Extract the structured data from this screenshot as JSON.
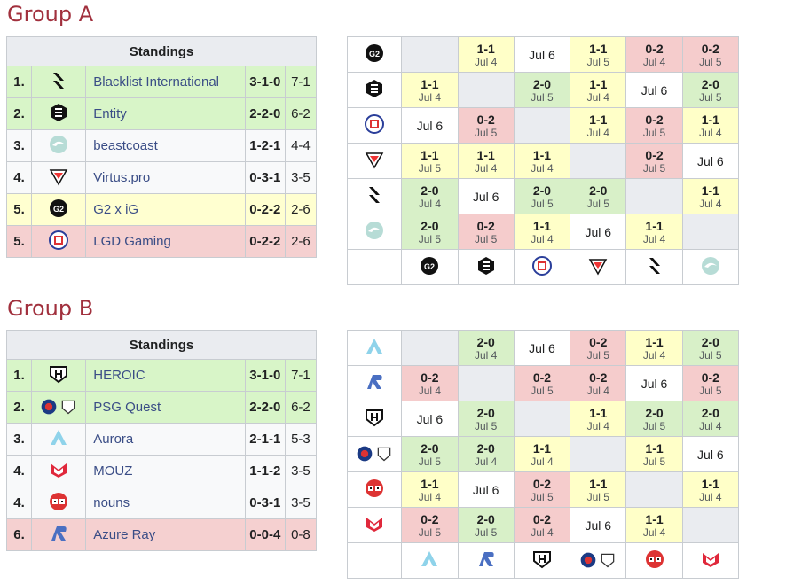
{
  "groupA": {
    "title": "Group A",
    "standings_header": "Standings",
    "rows": [
      {
        "rank": "1.",
        "logo": "blacklist-logo",
        "name": "Blacklist International",
        "record": "3-1-0",
        "games": "7-1",
        "tier": "up"
      },
      {
        "rank": "2.",
        "logo": "entity-logo",
        "name": "Entity",
        "record": "2-2-0",
        "games": "6-2",
        "tier": "up"
      },
      {
        "rank": "3.",
        "logo": "beastcoast-logo",
        "name": "beastcoast",
        "record": "1-2-1",
        "games": "4-4",
        "tier": "mid"
      },
      {
        "rank": "4.",
        "logo": "virtuspro-logo",
        "name": "Virtus.pro",
        "record": "0-3-1",
        "games": "3-5",
        "tier": "mid"
      },
      {
        "rank": "5.",
        "logo": "g2ig-logo",
        "name": "G2 x iG",
        "record": "0-2-2",
        "games": "2-6",
        "tier": "upmid"
      },
      {
        "rank": "5.",
        "logo": "lgd-logo",
        "name": "LGD Gaming",
        "record": "0-2-2",
        "games": "2-6",
        "tier": "down"
      }
    ],
    "cross_row_logos": [
      "g2ig-logo",
      "entity-logo",
      "lgd-logo",
      "virtuspro-logo",
      "blacklist-logo",
      "beastcoast-logo"
    ],
    "cross": [
      [
        {
          "t": "self"
        },
        {
          "t": "d",
          "s": "1-1",
          "d": "Jul 4"
        },
        {
          "t": "f",
          "d": "Jul 6"
        },
        {
          "t": "d",
          "s": "1-1",
          "d": "Jul 5"
        },
        {
          "t": "l",
          "s": "0-2",
          "d": "Jul 4"
        },
        {
          "t": "l",
          "s": "0-2",
          "d": "Jul 5"
        }
      ],
      [
        {
          "t": "d",
          "s": "1-1",
          "d": "Jul 4"
        },
        {
          "t": "self"
        },
        {
          "t": "w",
          "s": "2-0",
          "d": "Jul 5"
        },
        {
          "t": "d",
          "s": "1-1",
          "d": "Jul 4"
        },
        {
          "t": "f",
          "d": "Jul 6"
        },
        {
          "t": "w",
          "s": "2-0",
          "d": "Jul 5"
        }
      ],
      [
        {
          "t": "f",
          "d": "Jul 6"
        },
        {
          "t": "l",
          "s": "0-2",
          "d": "Jul 5"
        },
        {
          "t": "self"
        },
        {
          "t": "d",
          "s": "1-1",
          "d": "Jul 4"
        },
        {
          "t": "l",
          "s": "0-2",
          "d": "Jul 5"
        },
        {
          "t": "d",
          "s": "1-1",
          "d": "Jul 4"
        }
      ],
      [
        {
          "t": "d",
          "s": "1-1",
          "d": "Jul 5"
        },
        {
          "t": "d",
          "s": "1-1",
          "d": "Jul 4"
        },
        {
          "t": "d",
          "s": "1-1",
          "d": "Jul 4"
        },
        {
          "t": "self"
        },
        {
          "t": "l",
          "s": "0-2",
          "d": "Jul 5"
        },
        {
          "t": "f",
          "d": "Jul 6"
        }
      ],
      [
        {
          "t": "w",
          "s": "2-0",
          "d": "Jul 4"
        },
        {
          "t": "f",
          "d": "Jul 6"
        },
        {
          "t": "w",
          "s": "2-0",
          "d": "Jul 5"
        },
        {
          "t": "w",
          "s": "2-0",
          "d": "Jul 5"
        },
        {
          "t": "self"
        },
        {
          "t": "d",
          "s": "1-1",
          "d": "Jul 4"
        }
      ],
      [
        {
          "t": "w",
          "s": "2-0",
          "d": "Jul 5"
        },
        {
          "t": "l",
          "s": "0-2",
          "d": "Jul 5"
        },
        {
          "t": "d",
          "s": "1-1",
          "d": "Jul 4"
        },
        {
          "t": "f",
          "d": "Jul 6"
        },
        {
          "t": "d",
          "s": "1-1",
          "d": "Jul 4"
        },
        {
          "t": "self"
        }
      ]
    ]
  },
  "groupB": {
    "title": "Group B",
    "standings_header": "Standings",
    "rows": [
      {
        "rank": "1.",
        "logo": "heroic-logo",
        "name": "HEROIC",
        "record": "3-1-0",
        "games": "7-1",
        "tier": "up"
      },
      {
        "rank": "2.",
        "logo": "psg-quest-logo",
        "name": "PSG Quest",
        "record": "2-2-0",
        "games": "6-2",
        "tier": "up"
      },
      {
        "rank": "3.",
        "logo": "aurora-logo",
        "name": "Aurora",
        "record": "2-1-1",
        "games": "5-3",
        "tier": "mid"
      },
      {
        "rank": "4.",
        "logo": "mouz-logo",
        "name": "MOUZ",
        "record": "1-1-2",
        "games": "3-5",
        "tier": "mid"
      },
      {
        "rank": "4.",
        "logo": "nouns-logo",
        "name": "nouns",
        "record": "0-3-1",
        "games": "3-5",
        "tier": "mid"
      },
      {
        "rank": "6.",
        "logo": "azure-ray-logo",
        "name": "Azure Ray",
        "record": "0-0-4",
        "games": "0-8",
        "tier": "down"
      }
    ],
    "cross_row_logos": [
      "aurora-logo",
      "azure-ray-logo",
      "heroic-logo",
      "psg-quest-logo",
      "nouns-logo",
      "mouz-logo"
    ],
    "cross": [
      [
        {
          "t": "self"
        },
        {
          "t": "w",
          "s": "2-0",
          "d": "Jul 4"
        },
        {
          "t": "f",
          "d": "Jul 6"
        },
        {
          "t": "l",
          "s": "0-2",
          "d": "Jul 5"
        },
        {
          "t": "d",
          "s": "1-1",
          "d": "Jul 4"
        },
        {
          "t": "w",
          "s": "2-0",
          "d": "Jul 5"
        }
      ],
      [
        {
          "t": "l",
          "s": "0-2",
          "d": "Jul 4"
        },
        {
          "t": "self"
        },
        {
          "t": "l",
          "s": "0-2",
          "d": "Jul 5"
        },
        {
          "t": "l",
          "s": "0-2",
          "d": "Jul 4"
        },
        {
          "t": "f",
          "d": "Jul 6"
        },
        {
          "t": "l",
          "s": "0-2",
          "d": "Jul 5"
        }
      ],
      [
        {
          "t": "f",
          "d": "Jul 6"
        },
        {
          "t": "w",
          "s": "2-0",
          "d": "Jul 5"
        },
        {
          "t": "self"
        },
        {
          "t": "d",
          "s": "1-1",
          "d": "Jul 4"
        },
        {
          "t": "w",
          "s": "2-0",
          "d": "Jul 5"
        },
        {
          "t": "w",
          "s": "2-0",
          "d": "Jul 4"
        }
      ],
      [
        {
          "t": "w",
          "s": "2-0",
          "d": "Jul 5"
        },
        {
          "t": "w",
          "s": "2-0",
          "d": "Jul 4"
        },
        {
          "t": "d",
          "s": "1-1",
          "d": "Jul 4"
        },
        {
          "t": "self"
        },
        {
          "t": "d",
          "s": "1-1",
          "d": "Jul 5"
        },
        {
          "t": "f",
          "d": "Jul 6"
        }
      ],
      [
        {
          "t": "d",
          "s": "1-1",
          "d": "Jul 4"
        },
        {
          "t": "f",
          "d": "Jul 6"
        },
        {
          "t": "l",
          "s": "0-2",
          "d": "Jul 5"
        },
        {
          "t": "d",
          "s": "1-1",
          "d": "Jul 5"
        },
        {
          "t": "self"
        },
        {
          "t": "d",
          "s": "1-1",
          "d": "Jul 4"
        }
      ],
      [
        {
          "t": "l",
          "s": "0-2",
          "d": "Jul 5"
        },
        {
          "t": "w",
          "s": "2-0",
          "d": "Jul 5"
        },
        {
          "t": "l",
          "s": "0-2",
          "d": "Jul 4"
        },
        {
          "t": "f",
          "d": "Jul 6"
        },
        {
          "t": "d",
          "s": "1-1",
          "d": "Jul 4"
        },
        {
          "t": "self"
        }
      ]
    ]
  },
  "colors": {
    "title": "#a1303d",
    "link": "#3a4d86",
    "win": "#d8f0c8",
    "draw": "#ffffc8",
    "loss": "#f5cccc"
  }
}
